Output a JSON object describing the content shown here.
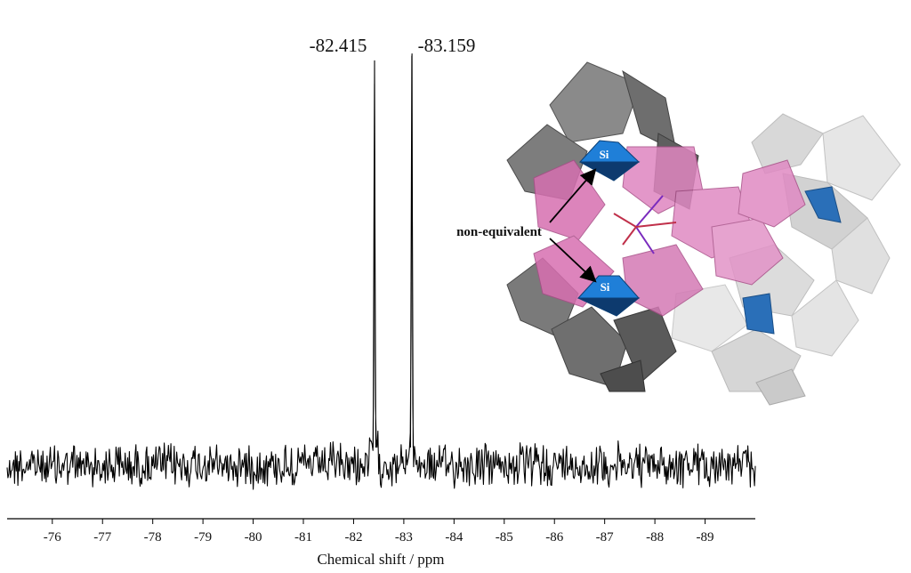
{
  "chart_data": {
    "type": "line",
    "title": "",
    "xlabel": "Chemical shift / ppm",
    "ylabel": "",
    "xlim": [
      -75.1,
      -90.0
    ],
    "x_reversed": true,
    "grid": false,
    "y_axis_shown": false,
    "x_ticks": [
      -76,
      -77,
      -78,
      -79,
      -80,
      -81,
      -82,
      -83,
      -84,
      -85,
      -86,
      -87,
      -88,
      -89
    ],
    "x_tick_labels": [
      "-76",
      "-77",
      "-78",
      "-79",
      "-80",
      "-81",
      "-82",
      "-83",
      "-84",
      "-85",
      "-86",
      "-87",
      "-88",
      "-89"
    ],
    "series": [
      {
        "peaks": [
          {
            "x": -82.415,
            "label": "-82.415",
            "relative_height": 0.83
          },
          {
            "x": -83.159,
            "label": "-83.159",
            "relative_height": 0.89
          }
        ],
        "baseline": "noise"
      }
    ],
    "color": "#000000"
  },
  "inset": {
    "annotation": "non-equivalent",
    "si_labels": [
      "Si",
      "Si"
    ],
    "colors": {
      "dark_polyhedra": "#7a7a7a",
      "light_polyhedra": "#cfcfcf",
      "pink_polyhedra": "#d877b8",
      "si_tetrahedra": "#1f6fc4"
    }
  }
}
